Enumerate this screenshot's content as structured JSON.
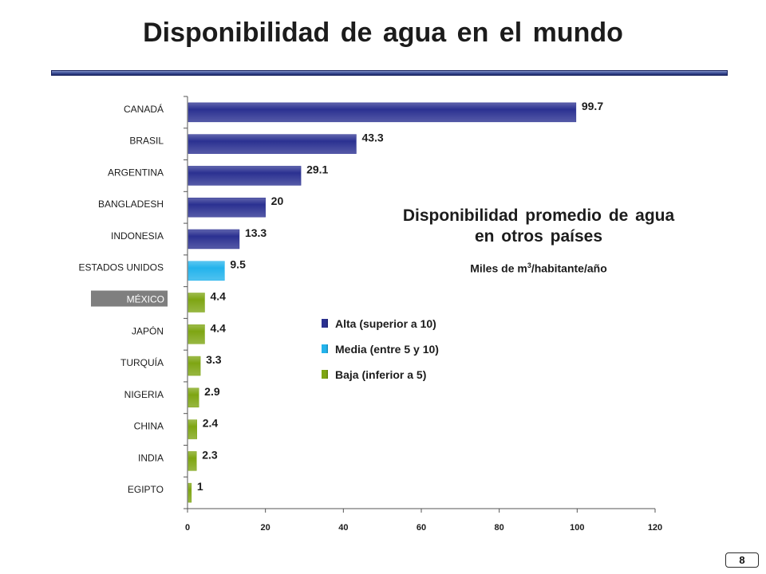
{
  "title": "Disponibilidad de agua en el mundo",
  "inset": {
    "title_line1": "Disponibilidad promedio de agua",
    "title_line2": "en otros países",
    "subtitle_pre": "Miles de m",
    "subtitle_sup": "3",
    "subtitle_post": "/habitante/año"
  },
  "legend": [
    {
      "label": "Alta (superior a 10)",
      "color": "#2b3191"
    },
    {
      "label": "Media (entre 5 y 10)",
      "color": "#23b3ec"
    },
    {
      "label": "Baja (inferior a 5)",
      "color": "#7ea513"
    }
  ],
  "page_number": "8",
  "colors": {
    "high": "#2b3191",
    "medium": "#23b3ec",
    "low": "#7ea513",
    "highlight_label_bg": "#7f7f7f"
  },
  "chart_data": {
    "type": "bar",
    "orientation": "horizontal",
    "categories": [
      "CANADÁ",
      "BRASIL",
      "ARGENTINA",
      "BANGLADESH",
      "INDONESIA",
      "ESTADOS UNIDOS",
      "MÉXICO",
      "JAPÓN",
      "TURQUÍA",
      "NIGERIA",
      "CHINA",
      "INDIA",
      "EGIPTO"
    ],
    "values": [
      99.7,
      43.3,
      29.1,
      20,
      13.3,
      9.5,
      4.4,
      4.4,
      3.3,
      2.9,
      2.4,
      2.3,
      1
    ],
    "value_labels": [
      "99.7",
      "43.3",
      "29.1",
      "20",
      "13.3",
      "9.5",
      "4.4",
      "4.4",
      "3.3",
      "2.9",
      "2.4",
      "2.3",
      "1"
    ],
    "levels": [
      "high",
      "high",
      "high",
      "high",
      "high",
      "medium",
      "low",
      "low",
      "low",
      "low",
      "low",
      "low",
      "low"
    ],
    "highlighted_category": "MÉXICO",
    "xlim": [
      0,
      120
    ],
    "x_ticks": [
      0,
      20,
      40,
      60,
      80,
      100,
      120
    ],
    "x_tick_labels": [
      "0",
      "20",
      "40",
      "60",
      "80",
      "100",
      "120"
    ],
    "xlabel": "",
    "ylabel": "",
    "grid": false
  }
}
